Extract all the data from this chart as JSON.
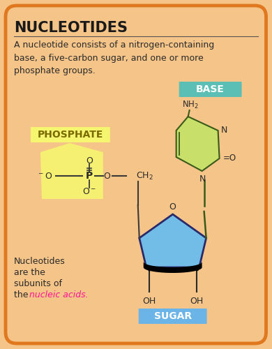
{
  "bg_color": "#f5c488",
  "border_color": "#e07820",
  "title": "NUCLEOTIDES",
  "description": "A nucleotide consists of a nitrogen-containing\nbase, a five-carbon sugar, and one or more\nphosphate groups.",
  "base_label": "BASE",
  "base_label_bg": "#5bbfb5",
  "phosphate_label": "PHOSPHATE",
  "phosphate_label_bg": "#f5f570",
  "sugar_label": "SUGAR",
  "sugar_label_bg": "#6ab4e8",
  "highlight_color": "#ff1493",
  "text_color": "#2a2a2a",
  "title_color": "#1a1a1a",
  "green_base_color": "#c8e06a",
  "blue_sugar_color": "#72bde8",
  "yellow_phosphate_color": "#f5f570"
}
